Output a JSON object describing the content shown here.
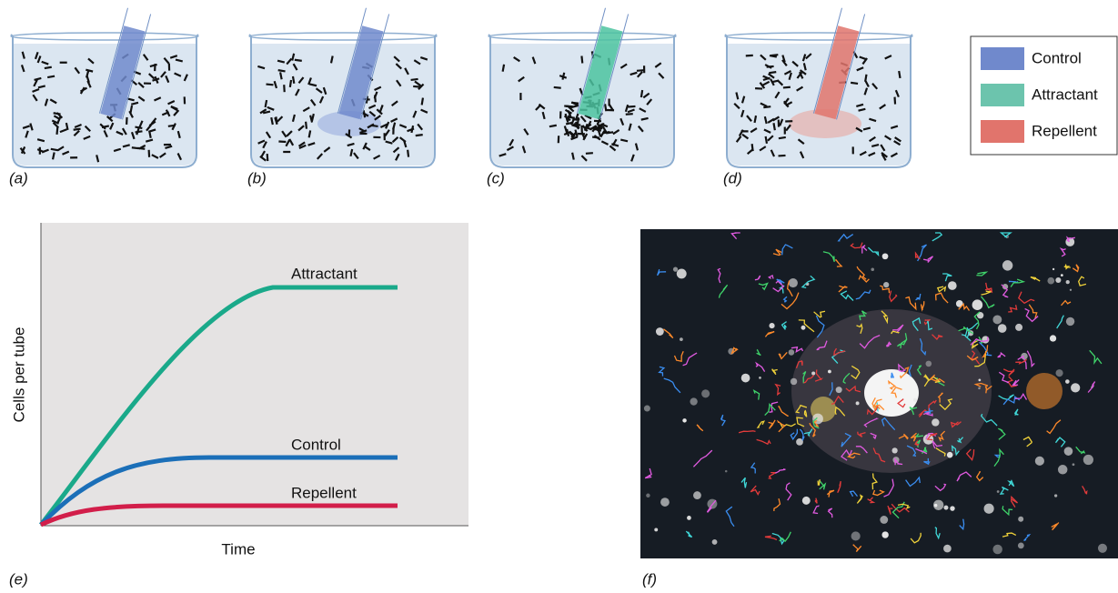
{
  "beaker_panels": [
    {
      "label": "(a)"
    },
    {
      "label": "(b)"
    },
    {
      "label": "(c)"
    },
    {
      "label": "(d)"
    }
  ],
  "legend": {
    "items": [
      "Control",
      "Attractant",
      "Repellent"
    ]
  },
  "graph": {
    "label": "(e)",
    "y_label": "Cells per tube",
    "x_label": "Time",
    "curves": [
      "Attractant",
      "Control",
      "Repellent"
    ]
  },
  "photo": {
    "label": "(f)"
  }
}
